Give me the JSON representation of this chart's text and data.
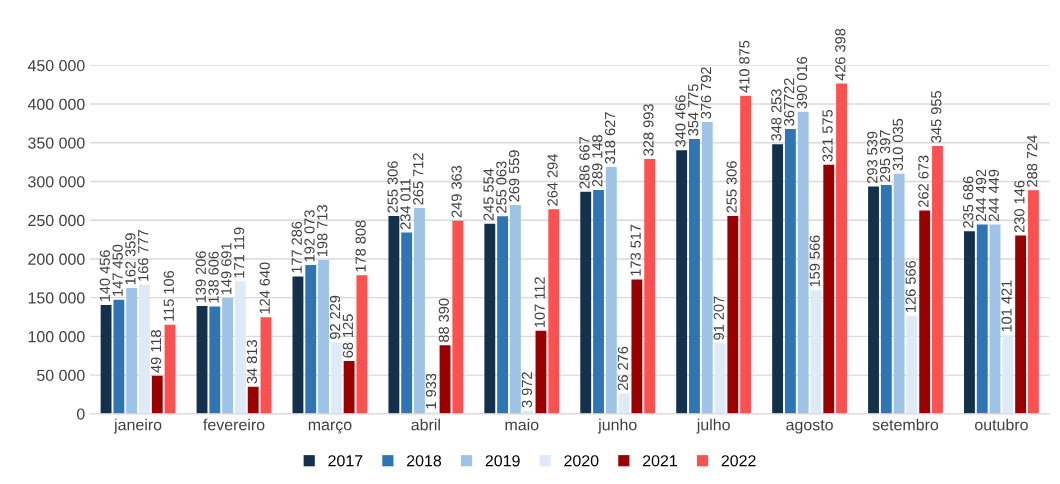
{
  "chart_data": {
    "type": "bar",
    "categories": [
      "janeiro",
      "fevereiro",
      "março",
      "abril",
      "maio",
      "junho",
      "julho",
      "agosto",
      "setembro",
      "outubro"
    ],
    "series": [
      {
        "name": "2017",
        "color": "#13304d",
        "values": [
          140456,
          139206,
          177286,
          255306,
          245554,
          286667,
          340466,
          348253,
          293539,
          235686
        ],
        "value_labels": [
          "140 456",
          "139 206",
          "177 286",
          "255 306",
          "245 554",
          "286 667",
          "340 466",
          "348 253",
          "293 539",
          "235 686"
        ]
      },
      {
        "name": "2018",
        "color": "#2e75b6",
        "values": [
          147450,
          138606,
          192073,
          234011,
          255063,
          289148,
          354775,
          367722,
          295397,
          244492
        ],
        "value_labels": [
          "147 450",
          "138 606",
          "192 073",
          "234 011",
          "255 063",
          "289 148",
          "354 775",
          "367722",
          "295 397",
          "244 492"
        ]
      },
      {
        "name": "2019",
        "color": "#9dc3e6",
        "values": [
          162359,
          149691,
          198713,
          265712,
          269559,
          318627,
          376792,
          390016,
          310035,
          244449
        ],
        "value_labels": [
          "162 359",
          "149 691",
          "198 713",
          "265 712",
          "269 559",
          "318 627",
          "376 792",
          "390 016",
          "310 035",
          "244 449"
        ]
      },
      {
        "name": "2020",
        "color": "#deebf7",
        "values": [
          166777,
          171119,
          92229,
          1933,
          3972,
          26276,
          91207,
          159566,
          126566,
          101421
        ],
        "value_labels": [
          "166 777",
          "171 119",
          "92 229",
          "1 933",
          "3 972",
          "26 276",
          "91 207",
          "159 566",
          "126 566",
          "101 421"
        ]
      },
      {
        "name": "2021",
        "color": "#990000",
        "values": [
          49118,
          34813,
          68125,
          88390,
          107112,
          173517,
          255306,
          321575,
          262673,
          230146
        ],
        "value_labels": [
          "49 118",
          "34 813",
          "68 125",
          "88 390",
          "107 112",
          "173 517",
          "255 306",
          "321 575",
          "262 673",
          "230 146"
        ]
      },
      {
        "name": "2022",
        "color": "#ff5050",
        "values": [
          115106,
          124640,
          178808,
          249363,
          264294,
          328993,
          410875,
          426398,
          345955,
          288724
        ],
        "value_labels": [
          "115 106",
          "124 640",
          "178 808",
          "249 363",
          "264 294",
          "328 993",
          "410 875",
          "426 398",
          "345 955",
          "288 724"
        ]
      }
    ],
    "ylim": [
      0,
      450000
    ],
    "yticks": [
      0,
      {
        "value": 50000,
        "label": "50 000"
      },
      {
        "value": 100000,
        "label": "100 000"
      },
      {
        "value": 150000,
        "label": "150 000"
      },
      {
        "value": 200000,
        "label": "200 000"
      },
      {
        "value": 250000,
        "label": "250 000"
      },
      {
        "value": 300000,
        "label": "300 000"
      },
      {
        "value": 350000,
        "label": "350 000"
      },
      {
        "value": 400000,
        "label": "400 000"
      },
      {
        "value": 450000,
        "label": "450 000"
      }
    ],
    "grid": "y",
    "legend": "bottom"
  }
}
